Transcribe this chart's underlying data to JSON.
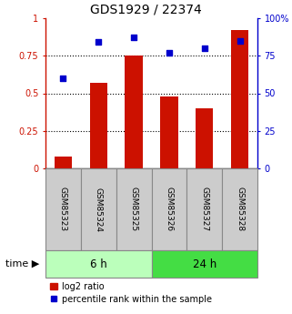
{
  "title": "GDS1929 / 22374",
  "samples": [
    "GSM85323",
    "GSM85324",
    "GSM85325",
    "GSM85326",
    "GSM85327",
    "GSM85328"
  ],
  "log2_ratio": [
    0.08,
    0.57,
    0.75,
    0.48,
    0.4,
    0.92
  ],
  "percentile_rank": [
    0.6,
    0.84,
    0.87,
    0.77,
    0.8,
    0.85
  ],
  "bar_color": "#cc1100",
  "marker_color": "#0000cc",
  "bar_width": 0.5,
  "ylim_left": [
    0,
    1
  ],
  "ylim_right": [
    0,
    100
  ],
  "yticks_left": [
    0,
    0.25,
    0.5,
    0.75,
    1.0
  ],
  "ytick_labels_left": [
    "0",
    "0.25",
    "0.5",
    "0.75",
    "1"
  ],
  "yticks_right": [
    0,
    25,
    50,
    75,
    100
  ],
  "ytick_labels_right": [
    "0",
    "25",
    "50",
    "75",
    "100%"
  ],
  "group_6h_label": "6 h",
  "group_24h_label": "24 h",
  "group_6h_color": "#bbffbb",
  "group_24h_color": "#44dd44",
  "time_label": "time ▶",
  "legend_bar_label": "log2 ratio",
  "legend_marker_label": "percentile rank within the sample"
}
